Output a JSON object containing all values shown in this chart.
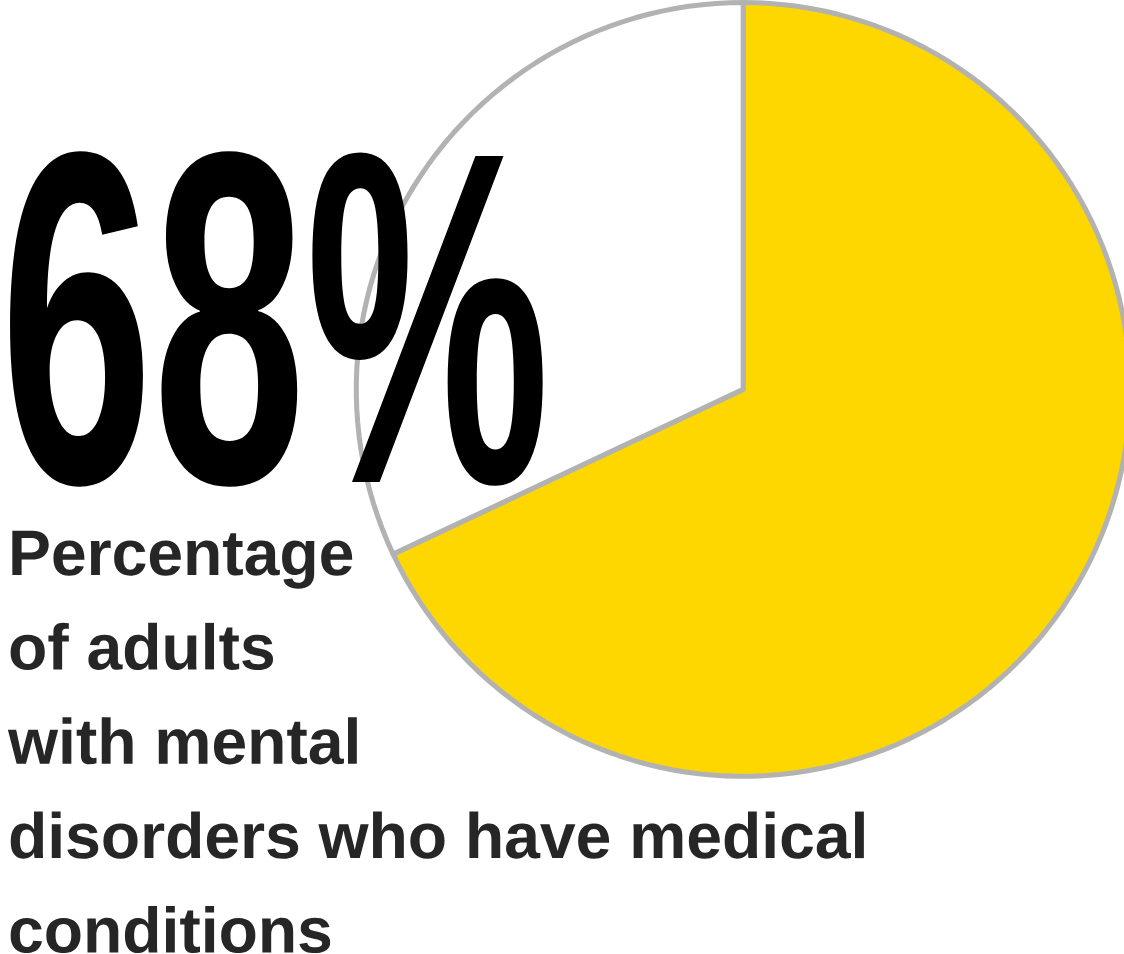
{
  "chart_data": {
    "type": "pie",
    "title": "Percentage of adults with mental disorders who have medical conditions",
    "categories": [
      null,
      null
    ],
    "values": [
      68,
      32
    ],
    "colors": [
      "#ffd700",
      "#ffffff"
    ],
    "value_labels": [
      "68%",
      null
    ]
  }
}
